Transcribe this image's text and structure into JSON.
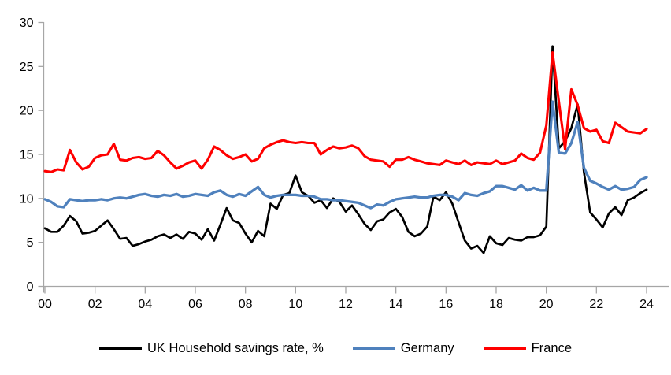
{
  "chart_data": {
    "type": "line",
    "title": "",
    "x_start_year": 2000,
    "x_step_years": 0.25,
    "x_tick_labels": [
      "00",
      "02",
      "04",
      "06",
      "08",
      "10",
      "12",
      "14",
      "16",
      "18",
      "20",
      "22",
      "24"
    ],
    "y_ticks": [
      0,
      5,
      10,
      15,
      20,
      25,
      30
    ],
    "ylim": [
      0,
      30
    ],
    "grid": false,
    "legend_position": "bottom",
    "axis_color": "#a6a6a6",
    "text_color": "#000000",
    "series": [
      {
        "name": "UK Household savings rate, %",
        "color": "#000000",
        "values": [
          6.6,
          6.2,
          6.2,
          6.9,
          8.0,
          7.4,
          6.0,
          6.1,
          6.3,
          6.9,
          7.5,
          6.5,
          5.4,
          5.5,
          4.6,
          4.8,
          5.1,
          5.3,
          5.7,
          5.9,
          5.5,
          5.9,
          5.4,
          6.2,
          6.0,
          5.3,
          6.5,
          5.2,
          7.0,
          8.9,
          7.5,
          7.2,
          6.0,
          5.0,
          6.3,
          5.7,
          9.4,
          8.8,
          10.4,
          10.6,
          12.6,
          10.7,
          10.3,
          9.5,
          9.8,
          8.9,
          10.0,
          9.6,
          8.5,
          9.2,
          8.2,
          7.1,
          6.4,
          7.4,
          7.6,
          8.4,
          8.8,
          7.9,
          6.2,
          5.7,
          6.0,
          6.8,
          10.2,
          9.8,
          10.7,
          9.4,
          7.3,
          5.2,
          4.3,
          4.6,
          3.8,
          5.7,
          4.9,
          4.7,
          5.5,
          5.3,
          5.2,
          5.6,
          5.6,
          5.8,
          6.8,
          27.3,
          15.7,
          16.5,
          18.0,
          20.7,
          13.0,
          8.4,
          7.6,
          6.7,
          8.3,
          9.0,
          8.1,
          9.8,
          10.1,
          10.6,
          11.0
        ]
      },
      {
        "name": "Germany",
        "color": "#4f81bd",
        "values": [
          9.9,
          9.6,
          9.1,
          9.0,
          9.9,
          9.8,
          9.7,
          9.8,
          9.8,
          9.9,
          9.8,
          10.0,
          10.1,
          10.0,
          10.2,
          10.4,
          10.5,
          10.3,
          10.2,
          10.4,
          10.3,
          10.5,
          10.2,
          10.3,
          10.5,
          10.4,
          10.3,
          10.7,
          10.9,
          10.4,
          10.2,
          10.5,
          10.3,
          10.8,
          11.3,
          10.4,
          10.1,
          10.3,
          10.4,
          10.4,
          10.4,
          10.3,
          10.3,
          10.2,
          9.9,
          9.9,
          9.8,
          9.8,
          9.7,
          9.6,
          9.5,
          9.2,
          8.9,
          9.3,
          9.2,
          9.6,
          9.9,
          10.0,
          10.1,
          10.2,
          10.1,
          10.1,
          10.3,
          10.4,
          10.4,
          10.2,
          9.8,
          10.6,
          10.4,
          10.3,
          10.6,
          10.8,
          11.4,
          11.4,
          11.2,
          11.0,
          11.5,
          10.9,
          11.2,
          10.9,
          10.9,
          21.0,
          15.2,
          15.1,
          16.3,
          18.7,
          13.5,
          12.0,
          11.7,
          11.3,
          11.0,
          11.4,
          11.0,
          11.1,
          11.3,
          12.1,
          12.4
        ]
      },
      {
        "name": "France",
        "color": "#ff0000",
        "values": [
          13.1,
          13.0,
          13.3,
          13.2,
          15.5,
          14.1,
          13.3,
          13.6,
          14.6,
          14.9,
          15.0,
          16.2,
          14.4,
          14.3,
          14.6,
          14.7,
          14.5,
          14.6,
          15.4,
          14.9,
          14.1,
          13.4,
          13.7,
          14.1,
          14.3,
          13.4,
          14.4,
          15.9,
          15.5,
          14.9,
          14.5,
          14.7,
          15.0,
          14.2,
          14.5,
          15.7,
          16.1,
          16.4,
          16.6,
          16.4,
          16.3,
          16.4,
          16.3,
          16.3,
          15.0,
          15.5,
          15.9,
          15.7,
          15.8,
          16.0,
          15.7,
          14.8,
          14.4,
          14.3,
          14.2,
          13.6,
          14.4,
          14.4,
          14.7,
          14.4,
          14.2,
          14.0,
          13.9,
          13.8,
          14.3,
          14.1,
          13.9,
          14.3,
          13.8,
          14.1,
          14.0,
          13.9,
          14.3,
          13.9,
          14.1,
          14.3,
          15.1,
          14.6,
          14.4,
          15.2,
          18.3,
          26.6,
          21.0,
          15.6,
          22.4,
          20.6,
          18.0,
          17.6,
          17.8,
          16.5,
          16.3,
          18.6,
          18.1,
          17.6,
          17.5,
          17.4,
          17.9
        ]
      }
    ]
  }
}
